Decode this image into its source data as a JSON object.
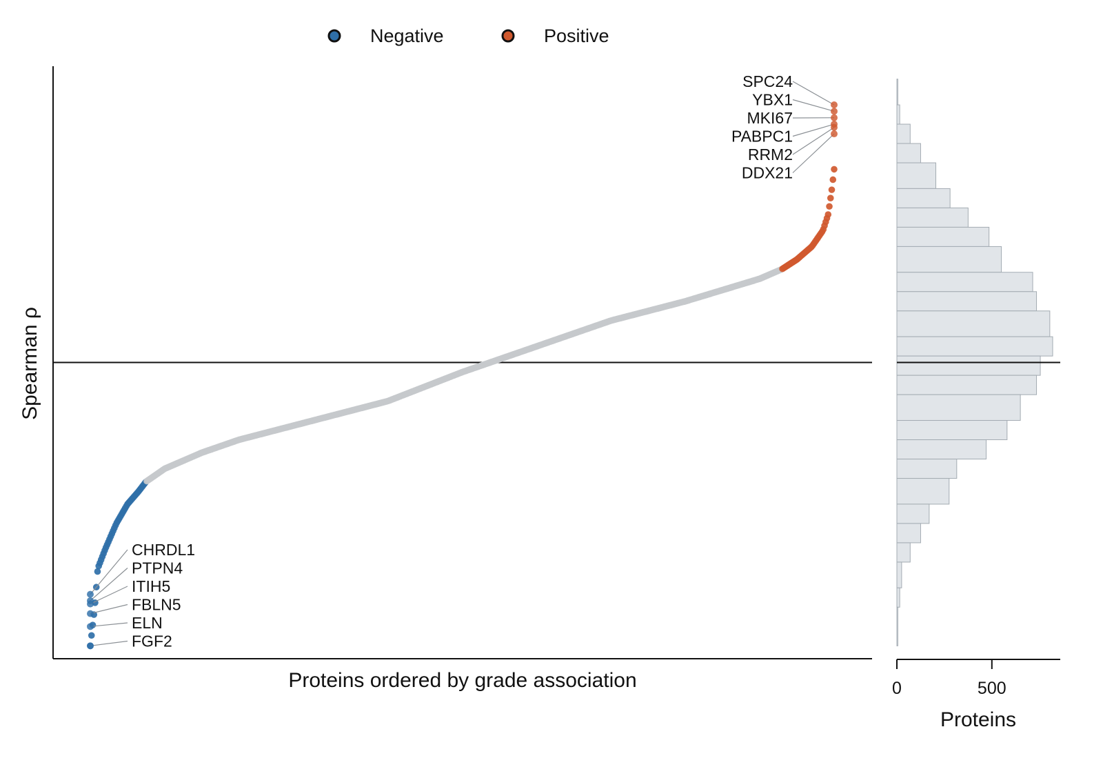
{
  "chart_data": [
    {
      "type": "scatter",
      "title": "",
      "xlabel": "Proteins ordered by grade association",
      "ylabel": "Spearman ρ",
      "x_order": "ranked",
      "ylim": [
        -0.46,
        0.46
      ],
      "grid": false,
      "reference_line_y": 0,
      "legend": {
        "placement": "top",
        "entries": [
          {
            "name": "Negative",
            "color": "#2f6fa8"
          },
          {
            "name": "Positive",
            "color": "#d0592f"
          }
        ]
      },
      "colors": {
        "negative": "#2f6fa8",
        "positive": "#d0592f",
        "neutral": "#c5c9cc",
        "leader_line": "#8a8f94",
        "axis": "#111111"
      },
      "curve": {
        "rank_fraction": [
          0,
          0.003,
          0.006,
          0.01,
          0.02,
          0.035,
          0.05,
          0.065,
          0.075,
          0.1,
          0.15,
          0.2,
          0.3,
          0.4,
          0.5,
          0.55,
          0.6,
          0.7,
          0.8,
          0.9,
          0.93,
          0.95,
          0.97,
          0.985,
          0.992,
          0.997,
          1.0
        ],
        "rho": [
          -0.44,
          -0.41,
          -0.38,
          -0.32,
          -0.29,
          -0.25,
          -0.22,
          -0.2,
          -0.185,
          -0.165,
          -0.14,
          -0.12,
          -0.09,
          -0.06,
          -0.015,
          0.005,
          0.025,
          0.065,
          0.095,
          0.13,
          0.145,
          0.16,
          0.18,
          0.205,
          0.23,
          0.27,
          0.3
        ],
        "negative_until_rank_fraction": 0.075,
        "positive_from_rank_fraction": 0.93
      },
      "labeled_points": [
        {
          "gene": "SPC24",
          "group": "positive",
          "rank_fraction": 1.0,
          "rho": 0.4
        },
        {
          "gene": "YBX1",
          "group": "positive",
          "rank_fraction": 1.0,
          "rho": 0.39
        },
        {
          "gene": "MKI67",
          "group": "positive",
          "rank_fraction": 1.0,
          "rho": 0.38
        },
        {
          "gene": "PABPC1",
          "group": "positive",
          "rank_fraction": 1.0,
          "rho": 0.37
        },
        {
          "gene": "RRM2",
          "group": "positive",
          "rank_fraction": 1.0,
          "rho": 0.365
        },
        {
          "gene": "DDX21",
          "group": "positive",
          "rank_fraction": 1.0,
          "rho": 0.355
        },
        {
          "gene": "CHRDL1",
          "group": "negative",
          "rank_fraction": 0.0,
          "rho": -0.36
        },
        {
          "gene": "PTPN4",
          "group": "negative",
          "rank_fraction": 0.0,
          "rho": -0.37
        },
        {
          "gene": "ITIH5",
          "group": "negative",
          "rank_fraction": 0.0,
          "rho": -0.375
        },
        {
          "gene": "FBLN5",
          "group": "negative",
          "rank_fraction": 0.0,
          "rho": -0.39
        },
        {
          "gene": "ELN",
          "group": "negative",
          "rank_fraction": 0.0,
          "rho": -0.41
        },
        {
          "gene": "FGF2",
          "group": "negative",
          "rank_fraction": 0.0,
          "rho": -0.44
        }
      ]
    },
    {
      "type": "bar",
      "orientation": "horizontal",
      "xlabel": "Proteins",
      "ylabel": "",
      "xticks": [
        "0",
        "500"
      ],
      "xtick_values": [
        0,
        500
      ],
      "xlim": [
        0,
        860
      ],
      "bar_color": "#e1e5e9",
      "bar_edge_color": "#a3abb2",
      "bins": [
        {
          "rho_low": 0.4,
          "rho_high": 0.44,
          "count": 5
        },
        {
          "rho_low": 0.37,
          "rho_high": 0.4,
          "count": 15
        },
        {
          "rho_low": 0.34,
          "rho_high": 0.37,
          "count": 70
        },
        {
          "rho_low": 0.31,
          "rho_high": 0.34,
          "count": 125
        },
        {
          "rho_low": 0.27,
          "rho_high": 0.31,
          "count": 205
        },
        {
          "rho_low": 0.24,
          "rho_high": 0.27,
          "count": 280
        },
        {
          "rho_low": 0.21,
          "rho_high": 0.24,
          "count": 375
        },
        {
          "rho_low": 0.18,
          "rho_high": 0.21,
          "count": 485
        },
        {
          "rho_low": 0.14,
          "rho_high": 0.18,
          "count": 550
        },
        {
          "rho_low": 0.11,
          "rho_high": 0.14,
          "count": 715
        },
        {
          "rho_low": 0.08,
          "rho_high": 0.11,
          "count": 735
        },
        {
          "rho_low": 0.04,
          "rho_high": 0.08,
          "count": 805
        },
        {
          "rho_low": 0.01,
          "rho_high": 0.04,
          "count": 820
        },
        {
          "rho_low": -0.02,
          "rho_high": 0.01,
          "count": 755
        },
        {
          "rho_low": -0.05,
          "rho_high": -0.02,
          "count": 735
        },
        {
          "rho_low": -0.09,
          "rho_high": -0.05,
          "count": 650
        },
        {
          "rho_low": -0.12,
          "rho_high": -0.09,
          "count": 580
        },
        {
          "rho_low": -0.15,
          "rho_high": -0.12,
          "count": 470
        },
        {
          "rho_low": -0.18,
          "rho_high": -0.15,
          "count": 315
        },
        {
          "rho_low": -0.22,
          "rho_high": -0.18,
          "count": 275
        },
        {
          "rho_low": -0.25,
          "rho_high": -0.22,
          "count": 170
        },
        {
          "rho_low": -0.28,
          "rho_high": -0.25,
          "count": 125
        },
        {
          "rho_low": -0.31,
          "rho_high": -0.28,
          "count": 70
        },
        {
          "rho_low": -0.35,
          "rho_high": -0.31,
          "count": 25
        },
        {
          "rho_low": -0.38,
          "rho_high": -0.35,
          "count": 15
        },
        {
          "rho_low": -0.44,
          "rho_high": -0.38,
          "count": 5
        }
      ]
    }
  ]
}
